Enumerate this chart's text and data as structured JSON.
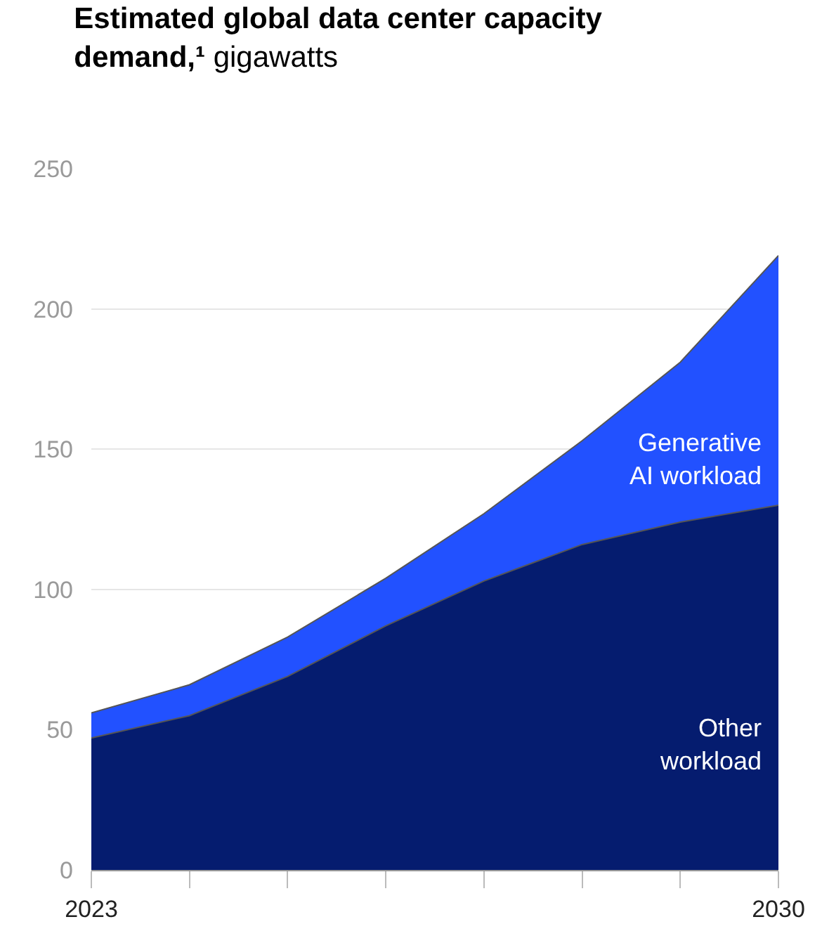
{
  "chart_data": {
    "type": "area",
    "stacked": true,
    "title": "Estimated global data center capacity demand,¹",
    "subtitle": "gigawatts",
    "x": [
      2023,
      2024,
      2025,
      2026,
      2027,
      2028,
      2029,
      2030
    ],
    "series": [
      {
        "name": "Other workload",
        "color": "#051c6f",
        "values": [
          47,
          55,
          69,
          87,
          103,
          116,
          124,
          130
        ]
      },
      {
        "name": "Generative AI workload",
        "color": "#2251ff",
        "values": [
          9,
          11,
          14,
          17,
          24,
          37,
          57,
          89
        ]
      }
    ],
    "xlim": [
      2023,
      2030
    ],
    "xticks": [
      {
        "value": 2023,
        "label": "2023"
      },
      {
        "value": 2024,
        "label": null
      },
      {
        "value": 2025,
        "label": null
      },
      {
        "value": 2026,
        "label": null
      },
      {
        "value": 2027,
        "label": null
      },
      {
        "value": 2028,
        "label": null
      },
      {
        "value": 2029,
        "label": null
      },
      {
        "value": 2030,
        "label": "2030"
      }
    ],
    "ylim": [
      0,
      250
    ],
    "yticks": [
      0,
      50,
      100,
      150,
      200,
      250
    ],
    "grid": "y",
    "legend": false
  }
}
